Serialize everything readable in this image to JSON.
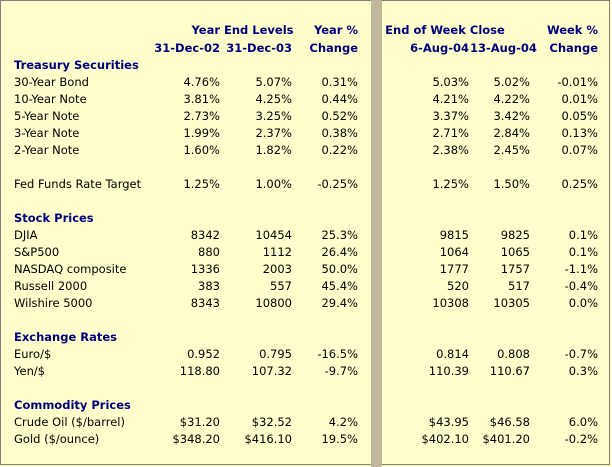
{
  "header": {
    "year_end_levels": "Year End Levels",
    "year_pct": "Year %",
    "end_of_week_close": "End of Week Close",
    "week_pct": "Week %",
    "date1": "31-Dec-02",
    "date2": "31-Dec-03",
    "change1": "Change",
    "date3": "6-Aug-04",
    "date4": "13-Aug-04",
    "change2": "Change"
  },
  "sections": {
    "treasury": {
      "title": "Treasury Securities",
      "rows": [
        {
          "label": "30-Year Bond",
          "v": [
            "4.76%",
            "5.07%",
            "0.31%",
            "5.03%",
            "5.02%",
            "-0.01%"
          ]
        },
        {
          "label": "10-Year Note",
          "v": [
            "3.81%",
            "4.25%",
            "0.44%",
            "4.21%",
            "4.22%",
            "0.01%"
          ]
        },
        {
          "label": "5-Year Note",
          "v": [
            "2.73%",
            "3.25%",
            "0.52%",
            "3.37%",
            "3.42%",
            "0.05%"
          ]
        },
        {
          "label": "3-Year Note",
          "v": [
            "1.99%",
            "2.37%",
            "0.38%",
            "2.71%",
            "2.84%",
            "0.13%"
          ]
        },
        {
          "label": "2-Year Note",
          "v": [
            "1.60%",
            "1.82%",
            "0.22%",
            "2.38%",
            "2.45%",
            "0.07%"
          ]
        }
      ],
      "fed": {
        "label": "Fed Funds Rate Target",
        "v": [
          "1.25%",
          "1.00%",
          "-0.25%",
          "1.25%",
          "1.50%",
          "0.25%"
        ]
      }
    },
    "stocks": {
      "title": "Stock Prices",
      "rows": [
        {
          "label": "DJIA",
          "v": [
            "8342",
            "10454",
            "25.3%",
            "9815",
            "9825",
            "0.1%"
          ]
        },
        {
          "label": "S&P500",
          "v": [
            "880",
            "1112",
            "26.4%",
            "1064",
            "1065",
            "0.1%"
          ]
        },
        {
          "label": "NASDAQ composite",
          "v": [
            "1336",
            "2003",
            "50.0%",
            "1777",
            "1757",
            "-1.1%"
          ]
        },
        {
          "label": "Russell 2000",
          "v": [
            "383",
            "557",
            "45.4%",
            "520",
            "517",
            "-0.4%"
          ]
        },
        {
          "label": "Wilshire 5000",
          "v": [
            "8343",
            "10800",
            "29.4%",
            "10308",
            "10305",
            "0.0%"
          ]
        }
      ]
    },
    "fx": {
      "title": "Exchange Rates",
      "rows": [
        {
          "label": "Euro/$",
          "v": [
            "0.952",
            "0.795",
            "-16.5%",
            "0.814",
            "0.808",
            "-0.7%"
          ]
        },
        {
          "label": "Yen/$",
          "v": [
            "118.80",
            "107.32",
            "-9.7%",
            "110.39",
            "110.67",
            "0.3%"
          ]
        }
      ]
    },
    "commodity": {
      "title": "Commodity Prices",
      "rows": [
        {
          "label": "Crude Oil ($/barrel)",
          "v": [
            "$31.20",
            "$32.52",
            "4.2%",
            "$43.95",
            "$46.58",
            "6.0%"
          ]
        },
        {
          "label": "Gold ($/ounce)",
          "v": [
            "$348.20",
            "$416.10",
            "19.5%",
            "$402.10",
            "$401.20",
            "-0.2%"
          ]
        }
      ]
    }
  }
}
